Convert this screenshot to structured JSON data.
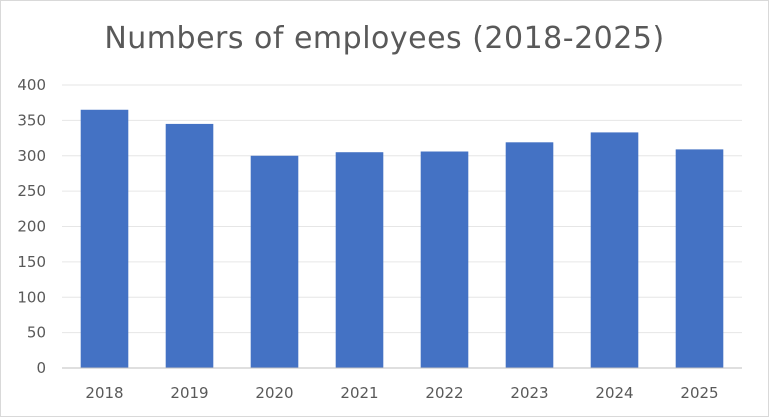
{
  "chart_data": {
    "type": "bar",
    "title": "Numbers of employees (2018-2025)",
    "xlabel": "",
    "ylabel": "",
    "categories": [
      "2018",
      "2019",
      "2020",
      "2021",
      "2022",
      "2023",
      "2024",
      "2025"
    ],
    "values": [
      365,
      345,
      300,
      305,
      306,
      319,
      333,
      309
    ],
    "ylim": [
      0,
      400
    ],
    "yticks": [
      0,
      50,
      100,
      150,
      200,
      250,
      300,
      350,
      400
    ],
    "grid": true,
    "legend": "none",
    "colors": {
      "bar": "#4472c4",
      "grid": "#e6e6e6",
      "axis": "#bfbfbf",
      "text": "#595959"
    }
  }
}
